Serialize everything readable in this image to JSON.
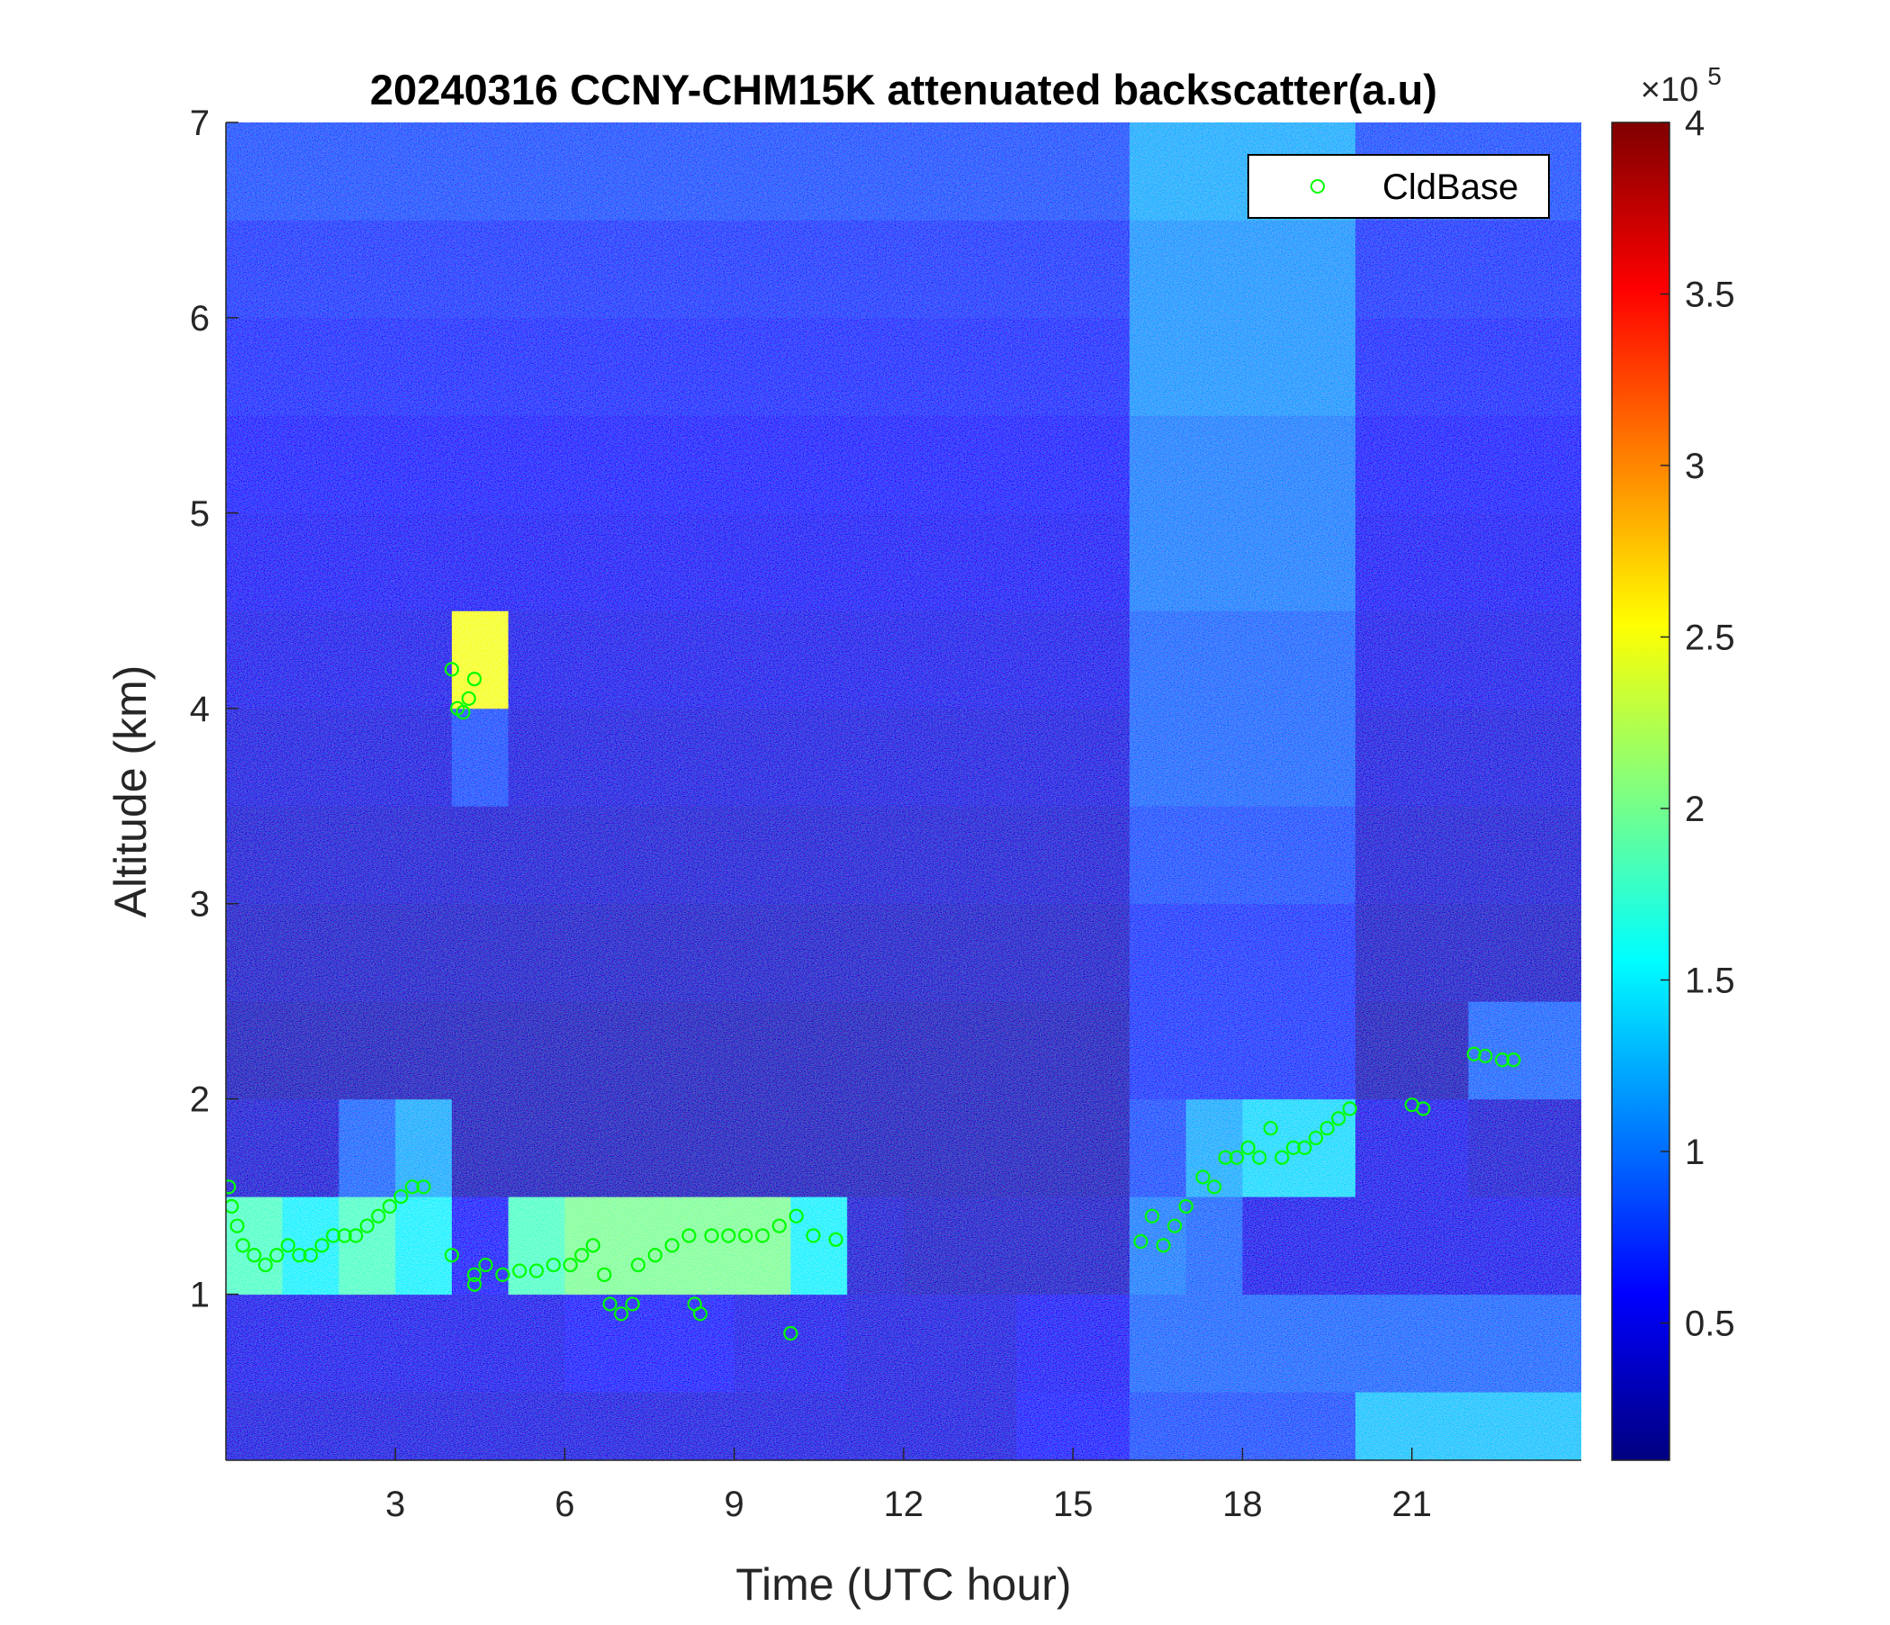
{
  "chart_data": {
    "type": "heatmap",
    "title": "20240316 CCNY-CHM15K attenuated backscatter(a.u)",
    "x_label": "Time (UTC hour)",
    "y_label": "Altitude (km)",
    "xlim": [
      0,
      24
    ],
    "xticks": [
      3,
      6,
      9,
      12,
      15,
      18,
      21
    ],
    "ylim": [
      0.15,
      7
    ],
    "yticks": [
      1,
      2,
      3,
      4,
      5,
      6,
      7
    ],
    "colormap": "jet",
    "colorbar": {
      "lim": [
        0.1,
        4
      ],
      "ticks": [
        0.5,
        1,
        1.5,
        2,
        2.5,
        3,
        3.5,
        4
      ],
      "multiplier": "×10",
      "exponent": "5"
    },
    "xbins": [
      0,
      1,
      2,
      3,
      4,
      5,
      6,
      7,
      8,
      9,
      10,
      11,
      12,
      13,
      14,
      15,
      16,
      17,
      18,
      19,
      20,
      21,
      22,
      23,
      24
    ],
    "ybins": [
      0.15,
      0.5,
      1,
      1.5,
      2,
      2.5,
      3,
      3.5,
      4,
      4.5,
      5,
      5.5,
      6,
      6.5,
      7
    ],
    "z": [
      [
        0.45,
        0.45,
        0.45,
        0.45,
        0.45,
        0.45,
        0.45,
        0.45,
        0.45,
        0.45,
        0.45,
        0.45,
        0.45,
        0.45,
        0.6,
        0.6,
        0.8,
        0.8,
        0.8,
        0.8,
        1.3,
        1.3,
        1.3,
        1.3
      ],
      [
        0.5,
        0.5,
        0.5,
        0.5,
        0.5,
        0.5,
        0.6,
        0.6,
        0.6,
        0.5,
        0.5,
        0.45,
        0.45,
        0.45,
        0.55,
        0.55,
        0.9,
        0.9,
        0.9,
        0.9,
        0.9,
        0.9,
        0.9,
        0.9
      ],
      [
        1.8,
        1.5,
        1.8,
        1.5,
        0.6,
        1.8,
        2.0,
        2.0,
        2.0,
        2.0,
        1.5,
        0.4,
        0.35,
        0.35,
        0.35,
        0.35,
        1.0,
        0.9,
        0.5,
        0.5,
        0.5,
        0.5,
        0.5,
        0.5
      ],
      [
        0.4,
        0.4,
        0.9,
        1.2,
        0.3,
        0.3,
        0.3,
        0.3,
        0.3,
        0.3,
        0.3,
        0.3,
        0.3,
        0.3,
        0.3,
        0.3,
        0.8,
        1.2,
        1.4,
        1.4,
        0.5,
        0.5,
        0.4,
        0.4
      ],
      [
        0.3,
        0.3,
        0.3,
        0.3,
        0.3,
        0.3,
        0.3,
        0.3,
        0.3,
        0.3,
        0.3,
        0.3,
        0.3,
        0.3,
        0.3,
        0.3,
        0.7,
        0.7,
        0.7,
        0.7,
        0.3,
        0.3,
        0.9,
        0.9
      ],
      [
        0.35,
        0.35,
        0.35,
        0.35,
        0.35,
        0.35,
        0.35,
        0.35,
        0.35,
        0.35,
        0.35,
        0.35,
        0.35,
        0.35,
        0.35,
        0.35,
        0.7,
        0.7,
        0.7,
        0.7,
        0.35,
        0.35,
        0.35,
        0.35
      ],
      [
        0.4,
        0.4,
        0.4,
        0.4,
        0.4,
        0.4,
        0.4,
        0.4,
        0.4,
        0.4,
        0.4,
        0.4,
        0.4,
        0.4,
        0.4,
        0.4,
        0.8,
        0.8,
        0.8,
        0.8,
        0.4,
        0.4,
        0.4,
        0.4
      ],
      [
        0.45,
        0.45,
        0.45,
        0.45,
        0.8,
        0.45,
        0.45,
        0.45,
        0.45,
        0.45,
        0.45,
        0.45,
        0.45,
        0.45,
        0.45,
        0.45,
        0.9,
        0.9,
        0.9,
        0.9,
        0.45,
        0.45,
        0.45,
        0.45
      ],
      [
        0.5,
        0.5,
        0.5,
        0.5,
        2.5,
        0.5,
        0.5,
        0.5,
        0.5,
        0.5,
        0.5,
        0.5,
        0.5,
        0.5,
        0.5,
        0.5,
        0.9,
        0.9,
        0.9,
        0.9,
        0.5,
        0.5,
        0.5,
        0.5
      ],
      [
        0.55,
        0.55,
        0.55,
        0.55,
        0.55,
        0.55,
        0.55,
        0.55,
        0.55,
        0.55,
        0.55,
        0.55,
        0.55,
        0.55,
        0.55,
        0.55,
        1.0,
        1.0,
        1.0,
        1.0,
        0.55,
        0.55,
        0.55,
        0.55
      ],
      [
        0.6,
        0.6,
        0.6,
        0.6,
        0.6,
        0.6,
        0.6,
        0.6,
        0.6,
        0.6,
        0.6,
        0.6,
        0.6,
        0.6,
        0.6,
        0.6,
        1.0,
        1.0,
        1.0,
        1.0,
        0.6,
        0.6,
        0.6,
        0.6
      ],
      [
        0.65,
        0.65,
        0.65,
        0.65,
        0.65,
        0.65,
        0.65,
        0.65,
        0.65,
        0.65,
        0.65,
        0.65,
        0.65,
        0.65,
        0.65,
        0.65,
        1.1,
        1.1,
        1.1,
        1.1,
        0.65,
        0.65,
        0.65,
        0.65
      ],
      [
        0.7,
        0.7,
        0.7,
        0.7,
        0.7,
        0.7,
        0.7,
        0.7,
        0.7,
        0.7,
        0.7,
        0.7,
        0.7,
        0.7,
        0.7,
        0.7,
        1.1,
        1.1,
        1.1,
        1.1,
        0.7,
        0.7,
        0.7,
        0.7
      ],
      [
        0.8,
        0.8,
        0.8,
        0.8,
        0.8,
        0.8,
        0.8,
        0.8,
        0.8,
        0.8,
        0.8,
        0.8,
        0.8,
        0.8,
        0.8,
        0.8,
        1.2,
        1.2,
        1.2,
        1.2,
        0.8,
        0.8,
        0.8,
        0.8
      ]
    ],
    "legend": "upper right",
    "series": [
      {
        "name": "CldBase",
        "type": "scatter",
        "color": "#00ff00",
        "x": [
          0.05,
          0.1,
          0.2,
          0.3,
          0.5,
          0.7,
          0.9,
          1.1,
          1.3,
          1.5,
          1.7,
          1.9,
          2.1,
          2.3,
          2.5,
          2.7,
          2.9,
          3.1,
          3.3,
          3.5,
          4.0,
          4.0,
          4.1,
          4.2,
          4.3,
          4.4,
          4.4,
          4.4,
          4.6,
          4.9,
          5.2,
          5.5,
          5.8,
          6.1,
          6.3,
          6.5,
          6.7,
          6.8,
          7.0,
          7.2,
          7.3,
          7.6,
          7.9,
          8.2,
          8.3,
          8.4,
          8.6,
          8.9,
          9.2,
          9.5,
          9.8,
          10.0,
          10.1,
          10.4,
          10.8,
          16.2,
          16.4,
          16.6,
          16.8,
          17.0,
          17.3,
          17.5,
          17.7,
          17.9,
          18.1,
          18.3,
          18.5,
          18.7,
          18.9,
          19.1,
          19.3,
          19.5,
          19.7,
          19.9,
          21.0,
          21.2,
          22.1,
          22.3,
          22.6,
          22.8
        ],
        "y": [
          1.55,
          1.45,
          1.35,
          1.25,
          1.2,
          1.15,
          1.2,
          1.25,
          1.2,
          1.2,
          1.25,
          1.3,
          1.3,
          1.3,
          1.35,
          1.4,
          1.45,
          1.5,
          1.55,
          1.55,
          1.2,
          4.2,
          4.0,
          3.98,
          4.05,
          4.15,
          1.1,
          1.05,
          1.15,
          1.1,
          1.12,
          1.12,
          1.15,
          1.15,
          1.2,
          1.25,
          1.1,
          0.95,
          0.9,
          0.95,
          1.15,
          1.2,
          1.25,
          1.3,
          0.95,
          0.9,
          1.3,
          1.3,
          1.3,
          1.3,
          1.35,
          0.8,
          1.4,
          1.3,
          1.28,
          1.27,
          1.4,
          1.25,
          1.35,
          1.45,
          1.6,
          1.55,
          1.7,
          1.7,
          1.75,
          1.7,
          1.85,
          1.7,
          1.75,
          1.75,
          1.8,
          1.85,
          1.9,
          1.95,
          1.97,
          1.95,
          2.23,
          2.22,
          2.2,
          2.2
        ]
      }
    ]
  }
}
